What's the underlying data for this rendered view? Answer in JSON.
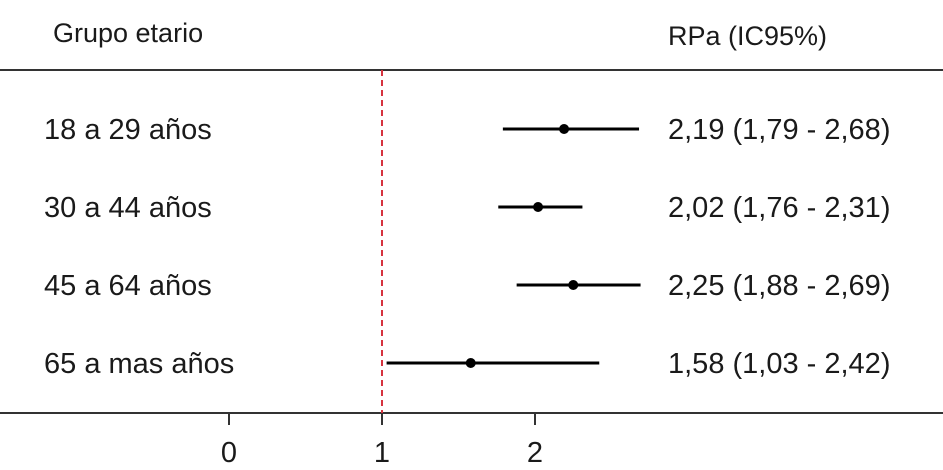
{
  "chart_data": {
    "type": "forest",
    "row_header": "Grupo etario",
    "value_header": "RPa (IC95%)",
    "rows": [
      {
        "label": "18 a 29 años",
        "estimate": 2.19,
        "lower": 1.79,
        "upper": 2.68,
        "text": "2,19 (1,79 - 2,68)"
      },
      {
        "label": "30 a 44 años",
        "estimate": 2.02,
        "lower": 1.76,
        "upper": 2.31,
        "text": "2,02 (1,76 - 2,31)"
      },
      {
        "label": "45 a 64 años",
        "estimate": 2.25,
        "lower": 1.88,
        "upper": 2.69,
        "text": "2,25 (1,88 - 2,69)"
      },
      {
        "label": "65 a mas años",
        "estimate": 1.58,
        "lower": 1.03,
        "upper": 2.42,
        "text": "1,58 (1,03 - 2,42)"
      }
    ],
    "x_ticks": [
      {
        "value": 0,
        "label": "0"
      },
      {
        "value": 1,
        "label": "1"
      },
      {
        "value": 2,
        "label": "2"
      }
    ],
    "reference_value": 1,
    "colors": {
      "reference_line": "#d6333f",
      "marks": "#000000",
      "rules": "#333333"
    }
  }
}
